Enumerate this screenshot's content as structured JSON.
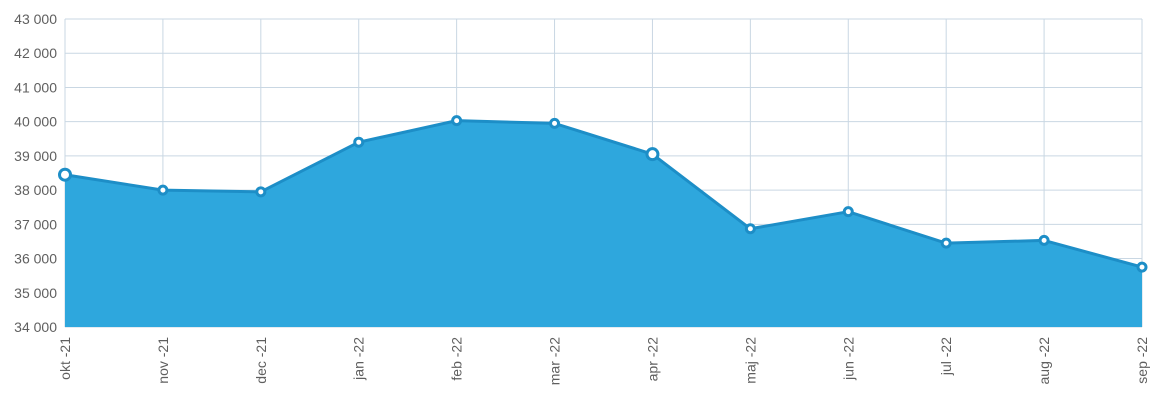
{
  "chart_data": {
    "type": "area",
    "categories": [
      "okt -21",
      "nov -21",
      "dec -21",
      "jan -22",
      "feb -22",
      "mar -22",
      "apr -22",
      "maj -22",
      "jun -22",
      "jul -22",
      "aug -22",
      "sep -22"
    ],
    "series": [
      {
        "values": [
          38450,
          38000,
          37950,
          39400,
          40030,
          39950,
          39050,
          36870,
          37370,
          36450,
          36530,
          35750
        ]
      }
    ],
    "ylim": [
      34000,
      43000
    ],
    "yticks": [
      34000,
      35000,
      36000,
      37000,
      38000,
      39000,
      40000,
      41000,
      42000,
      43000
    ],
    "ytick_labels": [
      "34 000",
      "35 000",
      "36 000",
      "37 000",
      "38 000",
      "39 000",
      "40 000",
      "41 000",
      "42 000",
      "43 000"
    ],
    "grid": true,
    "highlight_index": [
      0,
      6
    ]
  },
  "colors": {
    "area": "#2ea7dd",
    "line": "#1d8ec7",
    "grid": "#c9d7e3",
    "text": "#5f5f5f"
  }
}
